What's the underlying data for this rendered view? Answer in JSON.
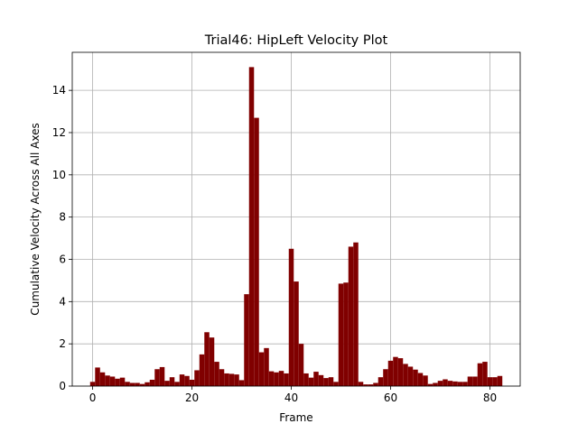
{
  "chart_data": {
    "type": "bar",
    "title": "Trial46: HipLeft Velocity Plot",
    "xlabel": "Frame",
    "ylabel": "Cumulative Velocity Across All Axes",
    "xlim": [
      -4.1,
      86.1
    ],
    "ylim": [
      0,
      15.8
    ],
    "xticks": [
      0,
      20,
      40,
      60,
      80
    ],
    "xtick_labels": [
      "0",
      "20",
      "40",
      "60",
      "80"
    ],
    "yticks": [
      0,
      2,
      4,
      6,
      8,
      10,
      12,
      14
    ],
    "ytick_labels": [
      "0",
      "2",
      "4",
      "6",
      "8",
      "10",
      "12",
      "14"
    ],
    "grid": true,
    "bar_color": "#800000",
    "bar_width": 1.0,
    "x": [
      0,
      1,
      2,
      3,
      4,
      5,
      6,
      7,
      8,
      9,
      10,
      11,
      12,
      13,
      14,
      15,
      16,
      17,
      18,
      19,
      20,
      21,
      22,
      23,
      24,
      25,
      26,
      27,
      28,
      29,
      30,
      31,
      32,
      33,
      34,
      35,
      36,
      37,
      38,
      39,
      40,
      41,
      42,
      43,
      44,
      45,
      46,
      47,
      48,
      49,
      50,
      51,
      52,
      53,
      54,
      55,
      56,
      57,
      58,
      59,
      60,
      61,
      62,
      63,
      64,
      65,
      66,
      67,
      68,
      69,
      70,
      71,
      72,
      73,
      74,
      75,
      76,
      77,
      78,
      79,
      80,
      81,
      82
    ],
    "values": [
      0.2,
      0.88,
      0.65,
      0.5,
      0.45,
      0.35,
      0.4,
      0.2,
      0.15,
      0.15,
      0.1,
      0.18,
      0.3,
      0.8,
      0.9,
      0.25,
      0.42,
      0.2,
      0.55,
      0.48,
      0.3,
      0.75,
      1.5,
      2.55,
      2.3,
      1.15,
      0.8,
      0.6,
      0.58,
      0.55,
      0.28,
      4.35,
      15.1,
      12.7,
      1.6,
      1.8,
      0.7,
      0.65,
      0.72,
      0.6,
      6.5,
      4.95,
      2.0,
      0.6,
      0.4,
      0.68,
      0.52,
      0.38,
      0.42,
      0.2,
      4.85,
      4.9,
      6.6,
      6.8,
      0.2,
      0.08,
      0.08,
      0.15,
      0.42,
      0.8,
      1.2,
      1.38,
      1.32,
      1.05,
      0.92,
      0.78,
      0.62,
      0.5,
      0.1,
      0.15,
      0.25,
      0.32,
      0.25,
      0.22,
      0.2,
      0.2,
      0.45,
      0.45,
      1.08,
      1.15,
      0.42,
      0.42,
      0.48
    ]
  }
}
